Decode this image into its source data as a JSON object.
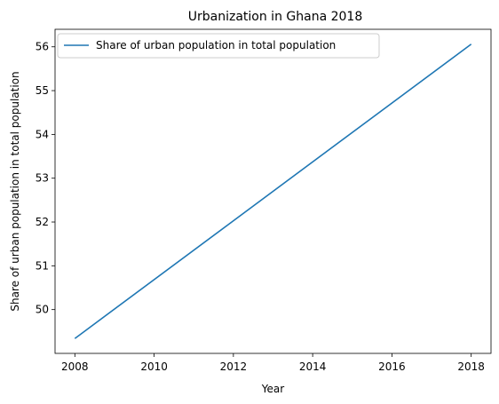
{
  "chart_data": {
    "type": "line",
    "title": "Urbanization in Ghana 2018",
    "xlabel": "Year",
    "ylabel": "Share of urban population in total population",
    "x": [
      2008,
      2018
    ],
    "series": [
      {
        "name": "Share of urban population in total population",
        "values": [
          49.34,
          56.06
        ],
        "color": "#1f77b4"
      }
    ],
    "xlim": [
      2007.5,
      2018.5
    ],
    "ylim": [
      49.0,
      56.4
    ],
    "xticks": [
      2008,
      2010,
      2012,
      2014,
      2016,
      2018
    ],
    "yticks": [
      50,
      51,
      52,
      53,
      54,
      55,
      56
    ],
    "grid": false,
    "legend_position": "top-left"
  }
}
